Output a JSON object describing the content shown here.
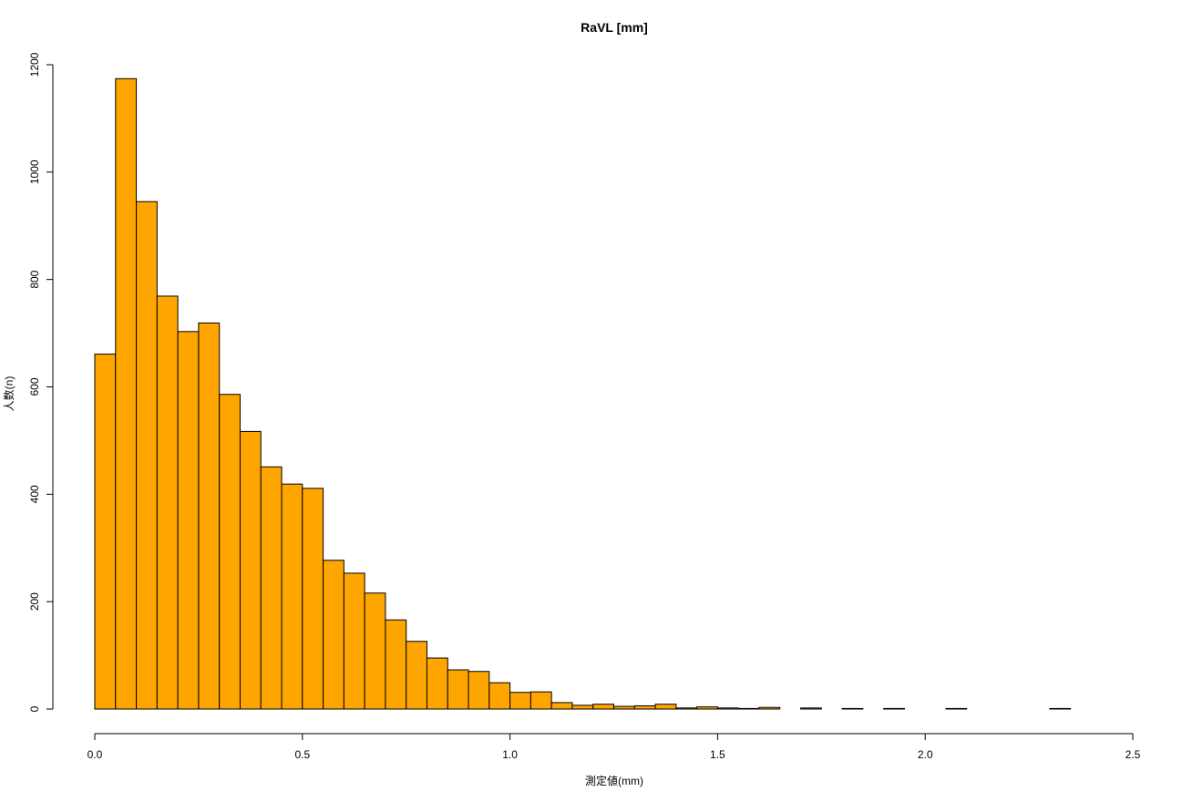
{
  "chart_data": {
    "type": "histogram",
    "title": "RaVL [mm]",
    "x_label": "測定値(mm)",
    "y_label": "人数(n)",
    "color": "#ffa500",
    "bins": [
      0,
      0.05,
      0.1,
      0.15,
      0.2,
      0.25,
      0.3,
      0.35,
      0.4,
      0.45,
      0.5,
      0.55,
      0.6,
      0.65,
      0.7,
      0.75,
      0.8,
      0.85,
      0.9,
      0.95,
      1.0,
      1.05,
      1.1,
      1.15,
      1.2,
      1.25,
      1.3,
      1.35,
      1.4,
      1.45,
      1.5,
      1.55,
      1.6,
      1.65,
      1.7,
      1.75,
      1.8,
      1.85,
      1.9,
      1.95,
      2.0,
      2.05,
      2.1,
      2.15,
      2.2,
      2.25,
      2.3,
      2.35
    ],
    "values": [
      661,
      1174,
      945,
      769,
      703,
      719,
      586,
      517,
      451,
      419,
      411,
      277,
      253,
      216,
      166,
      126,
      95,
      73,
      70,
      49,
      31,
      32,
      12,
      7,
      9,
      5,
      6,
      9,
      2,
      4,
      2,
      1,
      3,
      0,
      2,
      0,
      1,
      0,
      1,
      0,
      0,
      1,
      0,
      0,
      0,
      0,
      1
    ],
    "xlim": [
      0,
      2.5
    ],
    "ylim": [
      0,
      1200
    ],
    "xticks": [
      {
        "value": 0,
        "label": "0.0"
      },
      0.5,
      {
        "value": 1,
        "label": "1.0"
      },
      1.5,
      {
        "value": 2,
        "label": "2.0"
      },
      2.5
    ],
    "yticks": [
      0,
      200,
      400,
      600,
      800,
      1000,
      1200
    ]
  }
}
